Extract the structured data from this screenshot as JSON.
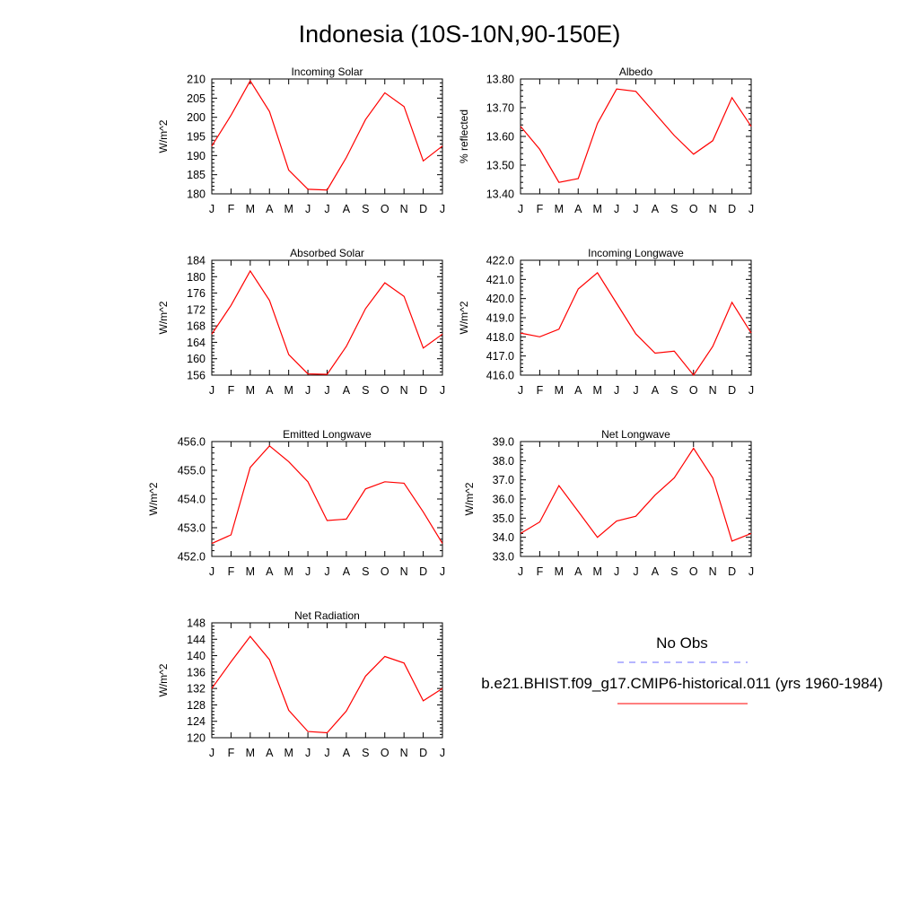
{
  "title": "Indonesia (10S-10N,90-150E)",
  "months": [
    "J",
    "F",
    "M",
    "A",
    "M",
    "J",
    "J",
    "A",
    "S",
    "O",
    "N",
    "D",
    "J"
  ],
  "colors": {
    "model": "#ff0000",
    "obs": "#6b6bff",
    "axis": "#000000"
  },
  "legend": {
    "obs_label": "No Obs",
    "model_label": "b.e21.BHIST.f09_g17.CMIP6-historical.011 (yrs 1960-1984)",
    "obs_line_style": "dashed",
    "model_line_style": "solid"
  },
  "chart_data": [
    {
      "type": "line",
      "title": "Incoming Solar",
      "ylabel": "W/m^2",
      "ylim": [
        180,
        210
      ],
      "yticks": [
        180,
        185,
        190,
        195,
        200,
        205,
        210
      ],
      "ytick_labels": [
        "180",
        "185",
        "190",
        "195",
        "200",
        "205",
        "210"
      ],
      "series": [
        {
          "values": [
            192.5,
            200.5,
            209.5,
            201.5,
            186.2,
            181.2,
            181.0,
            189.5,
            199.4,
            206.4,
            202.8,
            188.6,
            192.5
          ]
        }
      ]
    },
    {
      "type": "line",
      "title": "Albedo",
      "ylabel": "% reflected",
      "ylim": [
        13.4,
        13.8
      ],
      "yticks": [
        13.4,
        13.5,
        13.6,
        13.7,
        13.8
      ],
      "ytick_labels": [
        "13.40",
        "13.50",
        "13.60",
        "13.70",
        "13.80"
      ],
      "series": [
        {
          "values": [
            13.635,
            13.555,
            13.44,
            13.453,
            13.645,
            13.765,
            13.757,
            13.68,
            13.603,
            13.538,
            13.585,
            13.735,
            13.635
          ]
        }
      ]
    },
    {
      "type": "line",
      "title": "Absorbed Solar",
      "ylabel": "W/m^2",
      "ylim": [
        156,
        184
      ],
      "yticks": [
        156,
        160,
        164,
        168,
        172,
        176,
        180,
        184
      ],
      "ytick_labels": [
        "156",
        "160",
        "164",
        "168",
        "172",
        "176",
        "180",
        "184"
      ],
      "series": [
        {
          "values": [
            166.0,
            173.0,
            181.4,
            174.2,
            161.0,
            156.3,
            156.2,
            163.0,
            172.2,
            178.5,
            175.2,
            162.6,
            166.0
          ]
        }
      ]
    },
    {
      "type": "line",
      "title": "Incoming Longwave",
      "ylabel": "W/m^2",
      "ylim": [
        416.0,
        422.0
      ],
      "yticks": [
        416,
        417,
        418,
        419,
        420,
        421,
        422
      ],
      "ytick_labels": [
        "416.0",
        "417.0",
        "418.0",
        "419.0",
        "420.0",
        "421.0",
        "422.0"
      ],
      "series": [
        {
          "values": [
            418.2,
            418.0,
            418.4,
            420.5,
            421.35,
            419.75,
            418.15,
            417.15,
            417.25,
            416.0,
            417.5,
            419.8,
            418.2
          ]
        }
      ]
    },
    {
      "type": "line",
      "title": "Emitted Longwave",
      "ylabel": "W/m^2",
      "ylim": [
        452.0,
        456.0
      ],
      "yticks": [
        452,
        453,
        454,
        455,
        456
      ],
      "ytick_labels": [
        "452.0",
        "453.0",
        "454.0",
        "455.0",
        "456.0"
      ],
      "series": [
        {
          "values": [
            452.45,
            452.75,
            455.1,
            455.85,
            455.3,
            454.6,
            453.25,
            453.3,
            454.35,
            454.6,
            454.55,
            453.55,
            452.45
          ]
        }
      ]
    },
    {
      "type": "line",
      "title": "Net Longwave",
      "ylabel": "W/m^2",
      "ylim": [
        33.0,
        39.0
      ],
      "yticks": [
        33,
        34,
        35,
        36,
        37,
        38,
        39
      ],
      "ytick_labels": [
        "33.0",
        "34.0",
        "35.0",
        "36.0",
        "37.0",
        "38.0",
        "39.0"
      ],
      "series": [
        {
          "values": [
            34.2,
            34.8,
            36.7,
            35.35,
            34.0,
            34.85,
            35.1,
            36.2,
            37.1,
            38.65,
            37.1,
            33.8,
            34.2
          ]
        }
      ]
    },
    {
      "type": "line",
      "title": "Net Radiation",
      "ylabel": "W/m^2",
      "ylim": [
        120,
        148
      ],
      "yticks": [
        120,
        124,
        128,
        132,
        136,
        140,
        144,
        148
      ],
      "ytick_labels": [
        "120",
        "124",
        "128",
        "132",
        "136",
        "140",
        "144",
        "148"
      ],
      "series": [
        {
          "values": [
            132.0,
            138.5,
            144.7,
            139.0,
            126.7,
            121.5,
            121.2,
            126.5,
            135.0,
            139.8,
            138.2,
            129.0,
            132.0
          ]
        }
      ]
    }
  ]
}
